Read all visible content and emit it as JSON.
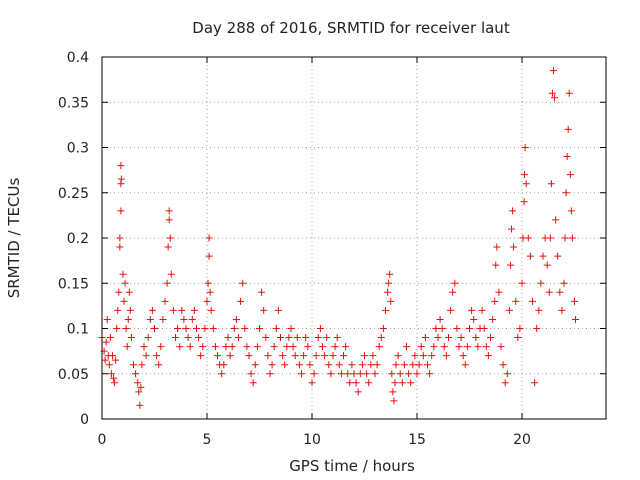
{
  "chart_data": {
    "type": "scatter",
    "title": "Day 288 of 2016, SRMTID for receiver laut",
    "xlabel": "GPS time / hours",
    "ylabel": "SRMTID / TECUs",
    "xlim": [
      0,
      24
    ],
    "ylim": [
      0,
      0.4
    ],
    "x_ticks": [
      0,
      5,
      10,
      15,
      20
    ],
    "x_tick_labels": [
      "0",
      "5",
      "10",
      "15",
      "20"
    ],
    "y_ticks": [
      0,
      0.05,
      0.1,
      0.15,
      0.2,
      0.25,
      0.3,
      0.35,
      0.4
    ],
    "y_tick_labels": [
      "0",
      "0.05",
      "0.1",
      "0.15",
      "0.2",
      "0.25",
      "0.3",
      "0.35",
      "0.4"
    ],
    "grid": true,
    "marker": "+",
    "series": [
      {
        "name": "SRMTID",
        "color": "#e8100c",
        "points": [
          [
            0.0,
            0.09
          ],
          [
            0.1,
            0.075
          ],
          [
            0.15,
            0.065
          ],
          [
            0.2,
            0.085
          ],
          [
            0.25,
            0.11
          ],
          [
            0.3,
            0.07
          ],
          [
            0.35,
            0.06
          ],
          [
            0.4,
            0.09
          ],
          [
            0.45,
            0.05
          ],
          [
            0.5,
            0.07
          ],
          [
            0.55,
            0.045
          ],
          [
            0.6,
            0.04
          ],
          [
            0.65,
            0.065
          ],
          [
            0.7,
            0.1
          ],
          [
            0.75,
            0.12
          ],
          [
            0.8,
            0.14
          ],
          [
            0.85,
            0.19
          ],
          [
            0.85,
            0.2
          ],
          [
            0.9,
            0.23
          ],
          [
            0.9,
            0.26
          ],
          [
            0.92,
            0.265
          ],
          [
            0.9,
            0.28
          ],
          [
            1.0,
            0.16
          ],
          [
            1.05,
            0.13
          ],
          [
            1.1,
            0.15
          ],
          [
            1.15,
            0.1
          ],
          [
            1.2,
            0.08
          ],
          [
            1.25,
            0.11
          ],
          [
            1.3,
            0.14
          ],
          [
            1.35,
            0.12
          ],
          [
            1.4,
            0.09
          ],
          [
            1.5,
            0.06
          ],
          [
            1.6,
            0.05
          ],
          [
            1.7,
            0.04
          ],
          [
            1.75,
            0.03
          ],
          [
            1.8,
            0.015
          ],
          [
            1.85,
            0.035
          ],
          [
            1.9,
            0.06
          ],
          [
            2.0,
            0.08
          ],
          [
            2.1,
            0.07
          ],
          [
            2.2,
            0.09
          ],
          [
            2.3,
            0.11
          ],
          [
            2.4,
            0.12
          ],
          [
            2.5,
            0.1
          ],
          [
            2.6,
            0.07
          ],
          [
            2.7,
            0.06
          ],
          [
            2.8,
            0.08
          ],
          [
            2.9,
            0.11
          ],
          [
            3.0,
            0.13
          ],
          [
            3.1,
            0.15
          ],
          [
            3.15,
            0.19
          ],
          [
            3.2,
            0.22
          ],
          [
            3.2,
            0.23
          ],
          [
            3.25,
            0.2
          ],
          [
            3.3,
            0.16
          ],
          [
            3.4,
            0.12
          ],
          [
            3.5,
            0.09
          ],
          [
            3.6,
            0.1
          ],
          [
            3.7,
            0.08
          ],
          [
            3.8,
            0.12
          ],
          [
            3.9,
            0.11
          ],
          [
            4.0,
            0.1
          ],
          [
            4.1,
            0.09
          ],
          [
            4.2,
            0.08
          ],
          [
            4.3,
            0.11
          ],
          [
            4.4,
            0.12
          ],
          [
            4.5,
            0.1
          ],
          [
            4.6,
            0.09
          ],
          [
            4.7,
            0.07
          ],
          [
            4.8,
            0.08
          ],
          [
            4.9,
            0.1
          ],
          [
            5.0,
            0.13
          ],
          [
            5.05,
            0.15
          ],
          [
            5.1,
            0.18
          ],
          [
            5.1,
            0.2
          ],
          [
            5.15,
            0.14
          ],
          [
            5.2,
            0.12
          ],
          [
            5.3,
            0.1
          ],
          [
            5.4,
            0.08
          ],
          [
            5.5,
            0.07
          ],
          [
            5.6,
            0.06
          ],
          [
            5.7,
            0.05
          ],
          [
            5.8,
            0.06
          ],
          [
            5.9,
            0.08
          ],
          [
            6.0,
            0.09
          ],
          [
            6.1,
            0.07
          ],
          [
            6.2,
            0.08
          ],
          [
            6.3,
            0.1
          ],
          [
            6.4,
            0.11
          ],
          [
            6.5,
            0.09
          ],
          [
            6.6,
            0.13
          ],
          [
            6.7,
            0.15
          ],
          [
            6.8,
            0.1
          ],
          [
            6.9,
            0.08
          ],
          [
            7.0,
            0.07
          ],
          [
            7.1,
            0.05
          ],
          [
            7.2,
            0.04
          ],
          [
            7.3,
            0.06
          ],
          [
            7.4,
            0.08
          ],
          [
            7.5,
            0.1
          ],
          [
            7.6,
            0.14
          ],
          [
            7.7,
            0.12
          ],
          [
            7.8,
            0.09
          ],
          [
            7.9,
            0.07
          ],
          [
            8.0,
            0.05
          ],
          [
            8.1,
            0.06
          ],
          [
            8.2,
            0.08
          ],
          [
            8.3,
            0.1
          ],
          [
            8.4,
            0.12
          ],
          [
            8.5,
            0.09
          ],
          [
            8.6,
            0.07
          ],
          [
            8.7,
            0.06
          ],
          [
            8.8,
            0.08
          ],
          [
            8.9,
            0.09
          ],
          [
            9.0,
            0.1
          ],
          [
            9.1,
            0.08
          ],
          [
            9.2,
            0.07
          ],
          [
            9.3,
            0.09
          ],
          [
            9.4,
            0.06
          ],
          [
            9.5,
            0.05
          ],
          [
            9.6,
            0.07
          ],
          [
            9.7,
            0.09
          ],
          [
            9.8,
            0.08
          ],
          [
            9.9,
            0.06
          ],
          [
            10.0,
            0.04
          ],
          [
            10.1,
            0.05
          ],
          [
            10.2,
            0.07
          ],
          [
            10.3,
            0.09
          ],
          [
            10.4,
            0.1
          ],
          [
            10.5,
            0.08
          ],
          [
            10.6,
            0.07
          ],
          [
            10.7,
            0.09
          ],
          [
            10.8,
            0.06
          ],
          [
            10.9,
            0.05
          ],
          [
            11.0,
            0.07
          ],
          [
            11.1,
            0.08
          ],
          [
            11.2,
            0.09
          ],
          [
            11.3,
            0.06
          ],
          [
            11.4,
            0.05
          ],
          [
            11.5,
            0.07
          ],
          [
            11.6,
            0.08
          ],
          [
            11.7,
            0.05
          ],
          [
            11.8,
            0.04
          ],
          [
            11.9,
            0.06
          ],
          [
            12.0,
            0.05
          ],
          [
            12.1,
            0.04
          ],
          [
            12.2,
            0.03
          ],
          [
            12.3,
            0.05
          ],
          [
            12.4,
            0.06
          ],
          [
            12.5,
            0.07
          ],
          [
            12.6,
            0.05
          ],
          [
            12.7,
            0.04
          ],
          [
            12.8,
            0.06
          ],
          [
            12.9,
            0.07
          ],
          [
            13.0,
            0.05
          ],
          [
            13.1,
            0.06
          ],
          [
            13.2,
            0.08
          ],
          [
            13.3,
            0.09
          ],
          [
            13.4,
            0.1
          ],
          [
            13.5,
            0.12
          ],
          [
            13.6,
            0.14
          ],
          [
            13.65,
            0.15
          ],
          [
            13.7,
            0.16
          ],
          [
            13.75,
            0.13
          ],
          [
            13.8,
            0.05
          ],
          [
            13.85,
            0.03
          ],
          [
            13.9,
            0.02
          ],
          [
            13.95,
            0.04
          ],
          [
            14.0,
            0.06
          ],
          [
            14.1,
            0.07
          ],
          [
            14.2,
            0.05
          ],
          [
            14.3,
            0.04
          ],
          [
            14.4,
            0.06
          ],
          [
            14.5,
            0.08
          ],
          [
            14.6,
            0.05
          ],
          [
            14.7,
            0.04
          ],
          [
            14.8,
            0.06
          ],
          [
            14.9,
            0.07
          ],
          [
            15.0,
            0.05
          ],
          [
            15.1,
            0.06
          ],
          [
            15.2,
            0.08
          ],
          [
            15.3,
            0.07
          ],
          [
            15.4,
            0.09
          ],
          [
            15.5,
            0.06
          ],
          [
            15.6,
            0.05
          ],
          [
            15.7,
            0.07
          ],
          [
            15.8,
            0.08
          ],
          [
            15.9,
            0.1
          ],
          [
            16.0,
            0.09
          ],
          [
            16.1,
            0.11
          ],
          [
            16.2,
            0.1
          ],
          [
            16.3,
            0.08
          ],
          [
            16.4,
            0.07
          ],
          [
            16.5,
            0.09
          ],
          [
            16.6,
            0.12
          ],
          [
            16.7,
            0.14
          ],
          [
            16.8,
            0.15
          ],
          [
            16.9,
            0.1
          ],
          [
            17.0,
            0.08
          ],
          [
            17.1,
            0.09
          ],
          [
            17.2,
            0.07
          ],
          [
            17.3,
            0.06
          ],
          [
            17.4,
            0.08
          ],
          [
            17.5,
            0.1
          ],
          [
            17.6,
            0.12
          ],
          [
            17.7,
            0.11
          ],
          [
            17.8,
            0.09
          ],
          [
            17.9,
            0.08
          ],
          [
            18.0,
            0.1
          ],
          [
            18.1,
            0.12
          ],
          [
            18.2,
            0.1
          ],
          [
            18.3,
            0.08
          ],
          [
            18.4,
            0.07
          ],
          [
            18.5,
            0.09
          ],
          [
            18.6,
            0.11
          ],
          [
            18.7,
            0.13
          ],
          [
            18.75,
            0.17
          ],
          [
            18.8,
            0.19
          ],
          [
            18.9,
            0.14
          ],
          [
            19.0,
            0.08
          ],
          [
            19.1,
            0.06
          ],
          [
            19.2,
            0.04
          ],
          [
            19.3,
            0.05
          ],
          [
            19.4,
            0.12
          ],
          [
            19.45,
            0.17
          ],
          [
            19.5,
            0.21
          ],
          [
            19.55,
            0.23
          ],
          [
            19.6,
            0.19
          ],
          [
            19.7,
            0.13
          ],
          [
            19.8,
            0.09
          ],
          [
            19.9,
            0.1
          ],
          [
            20.0,
            0.15
          ],
          [
            20.05,
            0.2
          ],
          [
            20.1,
            0.24
          ],
          [
            20.12,
            0.27
          ],
          [
            20.15,
            0.3
          ],
          [
            20.2,
            0.26
          ],
          [
            20.3,
            0.2
          ],
          [
            20.4,
            0.18
          ],
          [
            20.5,
            0.13
          ],
          [
            20.6,
            0.04
          ],
          [
            20.7,
            0.1
          ],
          [
            20.8,
            0.12
          ],
          [
            20.9,
            0.15
          ],
          [
            21.0,
            0.18
          ],
          [
            21.1,
            0.2
          ],
          [
            21.2,
            0.17
          ],
          [
            21.3,
            0.14
          ],
          [
            21.35,
            0.2
          ],
          [
            21.4,
            0.26
          ],
          [
            21.45,
            0.36
          ],
          [
            21.5,
            0.385
          ],
          [
            21.55,
            0.355
          ],
          [
            21.6,
            0.22
          ],
          [
            21.7,
            0.18
          ],
          [
            21.8,
            0.14
          ],
          [
            21.9,
            0.12
          ],
          [
            22.0,
            0.15
          ],
          [
            22.05,
            0.2
          ],
          [
            22.1,
            0.25
          ],
          [
            22.15,
            0.29
          ],
          [
            22.2,
            0.32
          ],
          [
            22.25,
            0.36
          ],
          [
            22.3,
            0.27
          ],
          [
            22.35,
            0.23
          ],
          [
            22.4,
            0.2
          ],
          [
            22.5,
            0.13
          ],
          [
            22.55,
            0.11
          ]
        ]
      }
    ]
  }
}
